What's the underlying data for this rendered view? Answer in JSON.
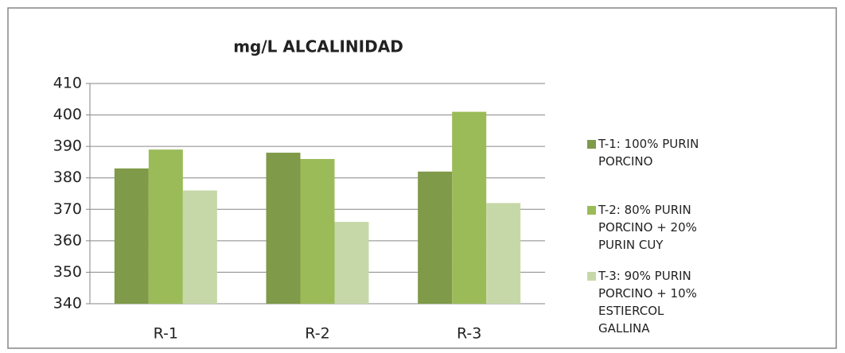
{
  "chart_data": {
    "type": "bar",
    "title": "mg/L  ALCALINIDAD",
    "categories": [
      "R-1",
      "R-2",
      "R-3"
    ],
    "series": [
      {
        "name": "T-1: 100% PURIN PORCINO",
        "color": "#7f9a48",
        "values": [
          383,
          388,
          382
        ]
      },
      {
        "name": "T-2: 80% PURIN PORCINO + 20% PURIN CUY",
        "color": "#9bbb59",
        "values": [
          389,
          386,
          401
        ]
      },
      {
        "name": "T-3: 90% PURIN PORCINO + 10% ESTIERCOL GALLINA",
        "color": "#c7d8a8",
        "values": [
          376,
          366,
          372
        ]
      }
    ],
    "ylim": [
      340,
      410
    ],
    "yticks": [
      340,
      350,
      360,
      370,
      380,
      390,
      400,
      410
    ],
    "grid": true,
    "legend": "right"
  }
}
